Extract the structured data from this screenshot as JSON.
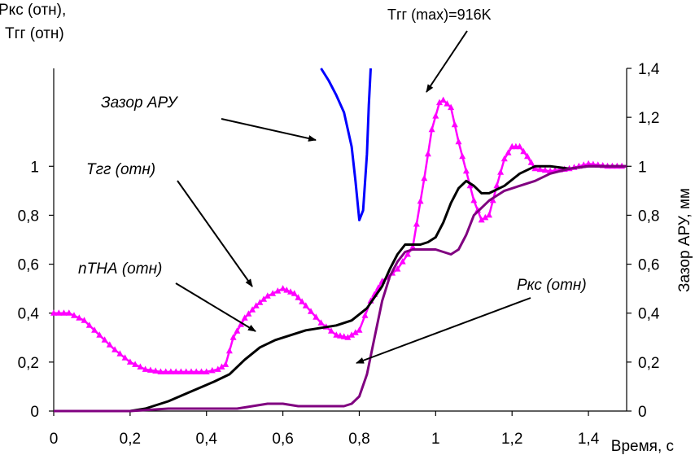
{
  "chart_data": {
    "type": "line",
    "left_axis_title": [
      "Ркс (отн),",
      "Тгг (отн)"
    ],
    "right_axis_title": "Зазор АРУ, мм",
    "x_axis_title": "Время, с",
    "xlim": [
      0,
      1.5
    ],
    "ylim": [
      0,
      1.4
    ],
    "x_ticks": [
      "0",
      "0,2",
      "0,4",
      "0,6",
      "0,8",
      "1",
      "1,2",
      "1,4"
    ],
    "y_left_ticks": [
      "0",
      "0,2",
      "0,4",
      "0,6",
      "0,8",
      "1"
    ],
    "y_right_ticks": [
      "0",
      "0,2",
      "0,4",
      "0,6",
      "0,8",
      "1",
      "1,2",
      "1,4"
    ],
    "grid": false,
    "annotations": [
      {
        "text": "Тгг (max)=916K",
        "style": "plain"
      },
      {
        "text": "Зазор АРУ",
        "style": "italic"
      },
      {
        "text": "Тгг (отн)",
        "style": "italic"
      },
      {
        "text": "nТНА (отн)",
        "style": "italic"
      },
      {
        "text": "Ркс (отн)",
        "style": "italic"
      }
    ],
    "series": [
      {
        "name": "Тгг (отн)",
        "color": "#ff00ff",
        "marker": "triangle",
        "x": [
          0,
          0.04,
          0.08,
          0.12,
          0.16,
          0.2,
          0.24,
          0.28,
          0.32,
          0.36,
          0.4,
          0.43,
          0.45,
          0.47,
          0.5,
          0.53,
          0.56,
          0.6,
          0.63,
          0.66,
          0.7,
          0.74,
          0.77,
          0.8,
          0.83,
          0.86,
          0.9,
          0.94,
          0.97,
          0.99,
          1.01,
          1.02,
          1.04,
          1.06,
          1.08,
          1.1,
          1.12,
          1.14,
          1.16,
          1.18,
          1.2,
          1.22,
          1.24,
          1.26,
          1.3,
          1.35,
          1.4,
          1.45,
          1.5
        ],
        "y": [
          0.4,
          0.4,
          0.37,
          0.31,
          0.25,
          0.2,
          0.17,
          0.16,
          0.16,
          0.16,
          0.16,
          0.17,
          0.19,
          0.3,
          0.38,
          0.43,
          0.47,
          0.5,
          0.48,
          0.43,
          0.36,
          0.31,
          0.3,
          0.33,
          0.45,
          0.53,
          0.58,
          0.67,
          0.95,
          1.15,
          1.26,
          1.27,
          1.24,
          1.1,
          0.98,
          0.86,
          0.78,
          0.8,
          0.92,
          1.03,
          1.08,
          1.08,
          1.04,
          0.99,
          0.98,
          0.99,
          1.01,
          1.0,
          1.0
        ]
      },
      {
        "name": "nТНА (отн)",
        "color": "#000000",
        "x": [
          0,
          0.2,
          0.24,
          0.3,
          0.36,
          0.42,
          0.46,
          0.5,
          0.54,
          0.58,
          0.62,
          0.66,
          0.7,
          0.74,
          0.78,
          0.82,
          0.86,
          0.88,
          0.9,
          0.92,
          0.96,
          0.98,
          1.0,
          1.02,
          1.04,
          1.06,
          1.08,
          1.1,
          1.12,
          1.14,
          1.18,
          1.22,
          1.26,
          1.3,
          1.35,
          1.4,
          1.45,
          1.5
        ],
        "y": [
          0,
          0,
          0.01,
          0.04,
          0.08,
          0.12,
          0.15,
          0.21,
          0.26,
          0.29,
          0.31,
          0.33,
          0.34,
          0.35,
          0.37,
          0.42,
          0.51,
          0.58,
          0.64,
          0.68,
          0.68,
          0.69,
          0.71,
          0.77,
          0.85,
          0.91,
          0.94,
          0.92,
          0.89,
          0.89,
          0.92,
          0.97,
          1.0,
          1.0,
          0.99,
          1.0,
          1.0,
          1.0
        ]
      },
      {
        "name": "Ркс (отн)",
        "color": "#800080",
        "x": [
          0,
          0.2,
          0.3,
          0.4,
          0.48,
          0.52,
          0.56,
          0.6,
          0.64,
          0.7,
          0.76,
          0.78,
          0.8,
          0.82,
          0.84,
          0.86,
          0.88,
          0.9,
          0.92,
          0.94,
          1.0,
          1.04,
          1.06,
          1.08,
          1.1,
          1.14,
          1.18,
          1.22,
          1.26,
          1.3,
          1.35,
          1.4,
          1.45,
          1.5
        ],
        "y": [
          0,
          0,
          0.01,
          0.01,
          0.01,
          0.02,
          0.03,
          0.03,
          0.02,
          0.02,
          0.02,
          0.03,
          0.06,
          0.15,
          0.3,
          0.45,
          0.55,
          0.61,
          0.65,
          0.66,
          0.66,
          0.64,
          0.66,
          0.72,
          0.8,
          0.86,
          0.9,
          0.92,
          0.94,
          0.97,
          0.99,
          1.0,
          1.0,
          1.0
        ]
      },
      {
        "name": "Зазор АРУ",
        "color": "#0000ff",
        "axis": "right",
        "x": [
          0.7,
          0.72,
          0.74,
          0.76,
          0.78,
          0.79,
          0.8,
          0.81,
          0.82,
          0.825,
          0.83
        ],
        "y": [
          1.4,
          1.35,
          1.29,
          1.22,
          1.08,
          0.94,
          0.78,
          0.82,
          1.05,
          1.25,
          1.4
        ]
      }
    ]
  }
}
